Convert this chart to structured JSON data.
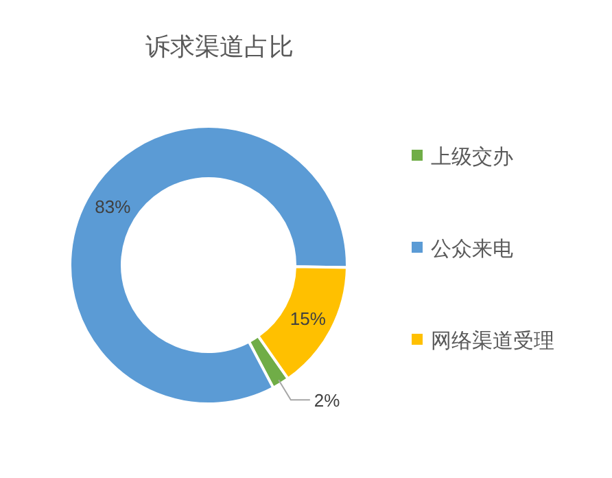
{
  "chart_data": {
    "type": "donut",
    "title": "诉求渠道占比",
    "categories": [
      "上级交办",
      "公众来电",
      "网络渠道受理"
    ],
    "values": [
      2,
      83,
      15
    ],
    "colors": [
      "#70ad47",
      "#5b9bd5",
      "#ffc000"
    ],
    "value_labels": [
      "2%",
      "83%",
      "15%"
    ],
    "legend": "right"
  }
}
